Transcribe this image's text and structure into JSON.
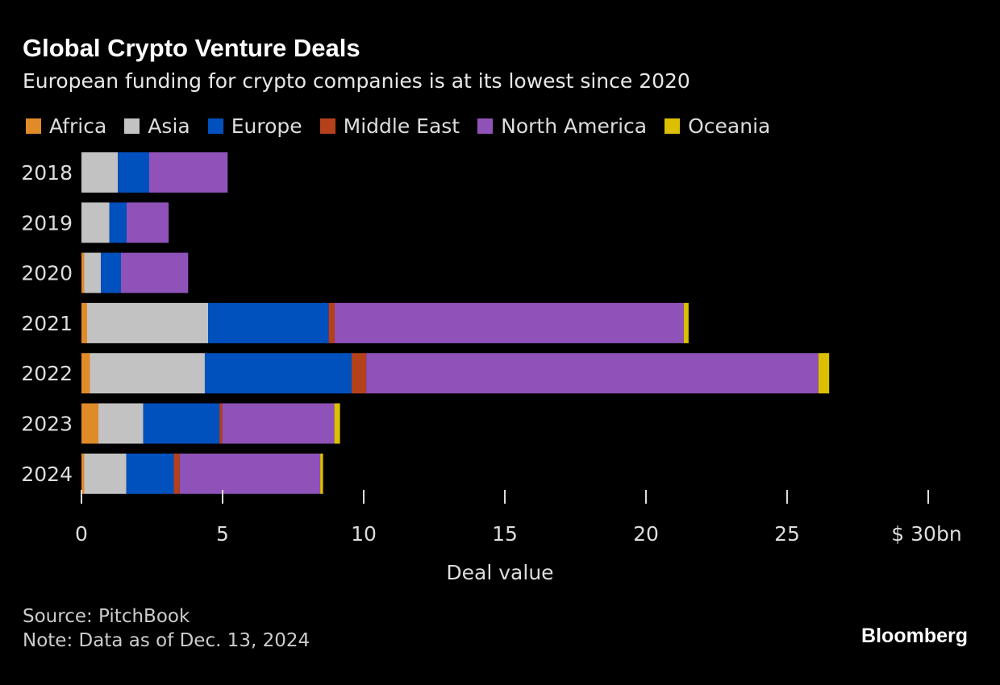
{
  "chart_data": {
    "type": "bar",
    "orientation": "horizontal",
    "stacked": true,
    "title": "Global Crypto Venture Deals",
    "subtitle": "European funding for crypto companies is at its lowest since 2020",
    "xlabel": "Deal value",
    "ylabel": "",
    "xlim": [
      0,
      30
    ],
    "xticks": [
      "0",
      "5",
      "10",
      "15",
      "20",
      "25",
      "$ 30bn"
    ],
    "xtick_values": [
      0,
      5,
      10,
      15,
      20,
      25,
      30
    ],
    "legend_placement": "top",
    "grid": false,
    "categories": [
      "2018",
      "2019",
      "2020",
      "2021",
      "2022",
      "2023",
      "2024"
    ],
    "series": [
      {
        "name": "Africa",
        "color": "#e08a28",
        "values": [
          0,
          0,
          0.1,
          0.2,
          0.3,
          0.6,
          0.1
        ]
      },
      {
        "name": "Asia",
        "color": "#c2c2c2",
        "values": [
          1.29,
          0.99,
          0.59,
          4.29,
          4.07,
          1.59,
          1.49
        ]
      },
      {
        "name": "Europe",
        "color": "#0051be",
        "values": [
          1.11,
          0.61,
          0.71,
          4.27,
          5.2,
          2.7,
          1.68
        ]
      },
      {
        "name": "Middle East",
        "color": "#b5411c",
        "values": [
          0,
          0,
          0,
          0.21,
          0.52,
          0.1,
          0.21
        ]
      },
      {
        "name": "North America",
        "color": "#8f52b8",
        "values": [
          2.78,
          1.49,
          2.38,
          12.37,
          16.02,
          3.97,
          4.98
        ]
      },
      {
        "name": "Oceania",
        "color": "#dcbf00",
        "values": [
          0,
          0,
          0,
          0.17,
          0.38,
          0.2,
          0.1
        ]
      }
    ]
  },
  "footer": {
    "source": "Source: PitchBook",
    "note": "Note: Data as of Dec. 13, 2024",
    "logo": "Bloomberg"
  }
}
